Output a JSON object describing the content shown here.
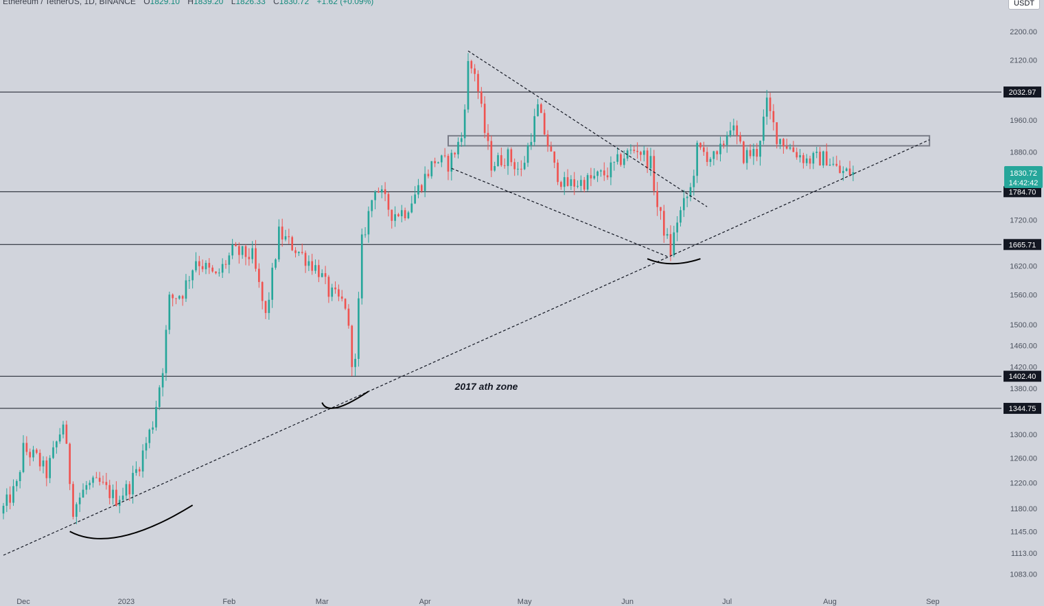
{
  "header": {
    "symbol": "Ethereum / TetherUS, 1D, BINANCE",
    "o_label": "O",
    "o": "1829.10",
    "h_label": "H",
    "h": "1839.20",
    "l_label": "L",
    "l": "1826.33",
    "c_label": "C",
    "c": "1830.72",
    "change": "+1.62 (+0.09%)"
  },
  "currency": "USDT",
  "colors": {
    "up": "#26a69a",
    "down": "#ef5350",
    "background": "#d1d4dc",
    "level_line": "#131722"
  },
  "chart_data": {
    "type": "candlestick",
    "x_type": "date",
    "y_scale": "log",
    "ylim": [
      1050,
      2250
    ],
    "xlim": [
      "2022-11-25",
      "2023-09-12"
    ],
    "grid": false,
    "y_ticks": [
      2200.0,
      2120.0,
      1960.0,
      1880.0,
      1720.0,
      1620.0,
      1560.0,
      1500.0,
      1460.0,
      1420.0,
      1380.0,
      1300.0,
      1260.0,
      1220.0,
      1180.0,
      1145.0,
      1113.0,
      1083.0
    ],
    "x_ticks": [
      {
        "label": "Dec",
        "date": "2022-12-01"
      },
      {
        "label": "2023",
        "date": "2023-01-01"
      },
      {
        "label": "Feb",
        "date": "2023-02-01"
      },
      {
        "label": "Mar",
        "date": "2023-03-01"
      },
      {
        "label": "Apr",
        "date": "2023-04-01"
      },
      {
        "label": "May",
        "date": "2023-05-01"
      },
      {
        "label": "Jun",
        "date": "2023-06-01"
      },
      {
        "label": "Jul",
        "date": "2023-07-01"
      },
      {
        "label": "Aug",
        "date": "2023-08-01"
      },
      {
        "label": "Sep",
        "date": "2023-09-01"
      }
    ],
    "levels": [
      {
        "value": 2032.97,
        "label": "2032.97"
      },
      {
        "value": 1784.7,
        "label": "1784.70"
      },
      {
        "value": 1665.71,
        "label": "1665.71"
      },
      {
        "value": 1402.4,
        "label": "1402.40"
      },
      {
        "value": 1344.75,
        "label": "1344.75"
      }
    ],
    "price_marker": {
      "value": 1830.72,
      "label": "1830.72",
      "countdown": "14:42:42"
    },
    "close_path": [
      [
        "2022-11-25",
        1180
      ],
      [
        "2022-11-29",
        1215
      ],
      [
        "2022-12-01",
        1275
      ],
      [
        "2022-12-05",
        1260
      ],
      [
        "2022-12-08",
        1235
      ],
      [
        "2022-12-13",
        1320
      ],
      [
        "2022-12-16",
        1180
      ],
      [
        "2022-12-20",
        1215
      ],
      [
        "2022-12-24",
        1218
      ],
      [
        "2022-12-29",
        1195
      ],
      [
        "2023-01-02",
        1215
      ],
      [
        "2023-01-05",
        1252
      ],
      [
        "2023-01-09",
        1320
      ],
      [
        "2023-01-12",
        1420
      ],
      [
        "2023-01-14",
        1550
      ],
      [
        "2023-01-18",
        1565
      ],
      [
        "2023-01-22",
        1635
      ],
      [
        "2023-01-28",
        1595
      ],
      [
        "2023-02-02",
        1650
      ],
      [
        "2023-02-08",
        1640
      ],
      [
        "2023-02-12",
        1515
      ],
      [
        "2023-02-16",
        1690
      ],
      [
        "2023-02-22",
        1650
      ],
      [
        "2023-02-28",
        1610
      ],
      [
        "2023-03-03",
        1565
      ],
      [
        "2023-03-08",
        1540
      ],
      [
        "2023-03-10",
        1435
      ],
      [
        "2023-03-11",
        1425
      ],
      [
        "2023-03-13",
        1670
      ],
      [
        "2023-03-17",
        1800
      ],
      [
        "2023-03-22",
        1735
      ],
      [
        "2023-03-26",
        1740
      ],
      [
        "2023-03-30",
        1792
      ],
      [
        "2023-04-04",
        1860
      ],
      [
        "2023-04-08",
        1850
      ],
      [
        "2023-04-12",
        1915
      ],
      [
        "2023-04-14",
        2105
      ],
      [
        "2023-04-16",
        2090
      ],
      [
        "2023-04-19",
        1930
      ],
      [
        "2023-04-21",
        1850
      ],
      [
        "2023-04-26",
        1870
      ],
      [
        "2023-04-30",
        1830
      ],
      [
        "2023-05-05",
        1990
      ],
      [
        "2023-05-10",
        1840
      ],
      [
        "2023-05-13",
        1800
      ],
      [
        "2023-05-20",
        1810
      ],
      [
        "2023-05-26",
        1830
      ],
      [
        "2023-05-31",
        1870
      ],
      [
        "2023-06-04",
        1890
      ],
      [
        "2023-06-08",
        1850
      ],
      [
        "2023-06-10",
        1750
      ],
      [
        "2023-06-14",
        1650
      ],
      [
        "2023-06-16",
        1720
      ],
      [
        "2023-06-20",
        1790
      ],
      [
        "2023-06-22",
        1885
      ],
      [
        "2023-06-28",
        1860
      ],
      [
        "2023-07-02",
        1950
      ],
      [
        "2023-07-06",
        1870
      ],
      [
        "2023-07-10",
        1880
      ],
      [
        "2023-07-13",
        2000
      ],
      [
        "2023-07-16",
        1920
      ],
      [
        "2023-07-20",
        1890
      ],
      [
        "2023-07-25",
        1860
      ],
      [
        "2023-07-31",
        1865
      ],
      [
        "2023-08-04",
        1830
      ],
      [
        "2023-08-08",
        1830.72
      ]
    ],
    "lines": [
      {
        "type": "trendline",
        "style": "dashed",
        "from": [
          "2022-11-25",
          1110
        ],
        "to": [
          "2023-08-31",
          1910
        ]
      },
      {
        "type": "trendline",
        "style": "dashed",
        "from": [
          "2023-04-14",
          2145
        ],
        "to": [
          "2023-06-25",
          1750
        ]
      },
      {
        "type": "trendline",
        "style": "dashed",
        "from": [
          "2023-04-09",
          1840
        ],
        "to": [
          "2023-06-13",
          1640
        ]
      }
    ],
    "zones": [
      {
        "type": "rectangle",
        "from": [
          "2023-04-08",
          1920
        ],
        "to": [
          "2023-08-31",
          1895
        ]
      }
    ],
    "arcs": [
      {
        "center": [
          "2022-12-28",
          1150
        ],
        "from": [
          "2022-12-15",
          1145
        ],
        "to": [
          "2023-01-21",
          1185
        ]
      },
      {
        "center": [
          "2023-03-03",
          1355
        ],
        "from": [
          "2023-03-01",
          1355
        ],
        "to": [
          "2023-03-15",
          1375
        ]
      },
      {
        "center": [
          "2023-06-14",
          1630
        ],
        "from": [
          "2023-06-07",
          1635
        ],
        "to": [
          "2023-06-23",
          1635
        ]
      }
    ],
    "annotations": [
      {
        "text": "2017 ath zone",
        "at": [
          "2023-04-10",
          1378
        ]
      }
    ]
  }
}
